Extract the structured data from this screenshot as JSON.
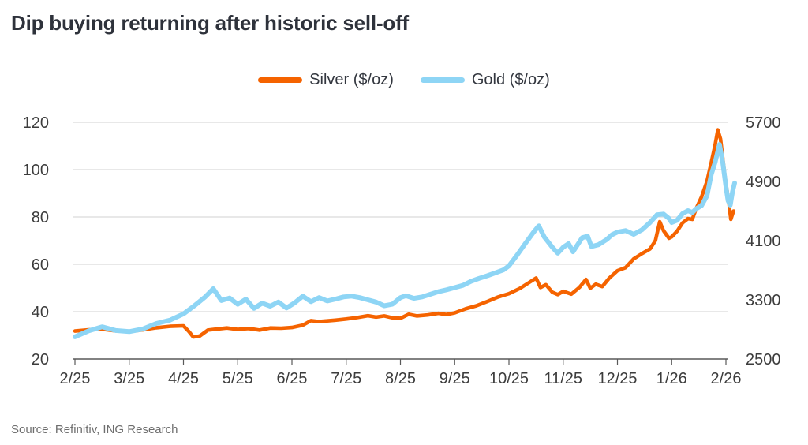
{
  "title": "Dip buying returning after historic sell-off",
  "source": "Source: Refinitiv, ING Research",
  "legend": [
    {
      "label": "Silver ($/oz)",
      "color": "#F56300"
    },
    {
      "label": "Gold ($/oz)",
      "color": "#8ED5F5"
    }
  ],
  "colors": {
    "silver_line": "#F56300",
    "gold_line": "#8ED5F5",
    "gridline": "#d9d9d9",
    "axis_line": "#595959",
    "tick_label": "#3c3c3c",
    "title_text": "#2e323b",
    "source_text": "#6e6e6e"
  },
  "chart_data": {
    "type": "line",
    "title": "Dip buying returning after historic sell-off",
    "grid": "horizontal-only",
    "legend_position": "top-center",
    "x_axis": {
      "categories": [
        "2/25",
        "3/25",
        "4/25",
        "5/25",
        "6/25",
        "7/25",
        "8/25",
        "9/25",
        "10/25",
        "11/25",
        "12/25",
        "1/26",
        "2/26"
      ],
      "unit": "month/year"
    },
    "left_axis": {
      "label": "Silver ($/oz)",
      "ticks": [
        20,
        40,
        60,
        80,
        100,
        120
      ],
      "range": [
        20,
        120
      ]
    },
    "right_axis": {
      "label": "Gold ($/oz)",
      "ticks": [
        2500,
        3300,
        4100,
        4900,
        5700
      ],
      "range": [
        2500,
        5700
      ]
    },
    "series": [
      {
        "name": "Silver ($/oz)",
        "axis": "left",
        "color": "#F56300",
        "x_unit": "months-after-2/25",
        "points": [
          [
            0,
            31.8
          ],
          [
            0.25,
            32.3
          ],
          [
            0.5,
            32.6
          ],
          [
            0.75,
            31.9
          ],
          [
            1,
            31.6
          ],
          [
            1.25,
            32.3
          ],
          [
            1.5,
            33.2
          ],
          [
            1.75,
            33.8
          ],
          [
            2,
            34
          ],
          [
            2.1,
            31.6
          ],
          [
            2.18,
            29.3
          ],
          [
            2.3,
            29.7
          ],
          [
            2.45,
            32.2
          ],
          [
            2.6,
            32.6
          ],
          [
            2.8,
            33.1
          ],
          [
            3,
            32.5
          ],
          [
            3.2,
            32.9
          ],
          [
            3.4,
            32.2
          ],
          [
            3.6,
            33.1
          ],
          [
            3.8,
            33
          ],
          [
            4,
            33.3
          ],
          [
            4.2,
            34.3
          ],
          [
            4.35,
            36.2
          ],
          [
            4.5,
            35.8
          ],
          [
            4.65,
            36.1
          ],
          [
            4.8,
            36.4
          ],
          [
            5,
            36.9
          ],
          [
            5.2,
            37.5
          ],
          [
            5.4,
            38.3
          ],
          [
            5.55,
            37.7
          ],
          [
            5.7,
            38.2
          ],
          [
            5.85,
            37.4
          ],
          [
            6,
            37.2
          ],
          [
            6.15,
            38.9
          ],
          [
            6.3,
            38.2
          ],
          [
            6.5,
            38.6
          ],
          [
            6.7,
            39.3
          ],
          [
            6.85,
            38.8
          ],
          [
            7,
            39.5
          ],
          [
            7.2,
            41.2
          ],
          [
            7.4,
            42.5
          ],
          [
            7.6,
            44.3
          ],
          [
            7.8,
            46.2
          ],
          [
            8,
            47.6
          ],
          [
            8.2,
            49.8
          ],
          [
            8.35,
            52
          ],
          [
            8.5,
            54.2
          ],
          [
            8.58,
            50.2
          ],
          [
            8.68,
            51.4
          ],
          [
            8.8,
            48.2
          ],
          [
            8.9,
            47.2
          ],
          [
            9,
            48.6
          ],
          [
            9.15,
            47.4
          ],
          [
            9.3,
            50.3
          ],
          [
            9.42,
            53.6
          ],
          [
            9.5,
            49.9
          ],
          [
            9.6,
            51.6
          ],
          [
            9.72,
            50.6
          ],
          [
            9.85,
            54.2
          ],
          [
            10,
            57.3
          ],
          [
            10.15,
            58.6
          ],
          [
            10.3,
            62.3
          ],
          [
            10.45,
            64.5
          ],
          [
            10.6,
            66.5
          ],
          [
            10.7,
            70
          ],
          [
            10.78,
            78
          ],
          [
            10.85,
            74.2
          ],
          [
            10.95,
            71
          ],
          [
            11,
            71.6
          ],
          [
            11.1,
            74
          ],
          [
            11.2,
            77.5
          ],
          [
            11.3,
            79.3
          ],
          [
            11.38,
            79
          ],
          [
            11.45,
            83.5
          ],
          [
            11.55,
            88.5
          ],
          [
            11.65,
            95
          ],
          [
            11.73,
            103
          ],
          [
            11.8,
            110.5
          ],
          [
            11.85,
            116.8
          ],
          [
            11.9,
            113
          ],
          [
            11.95,
            103
          ],
          [
            12,
            94
          ],
          [
            12.05,
            87
          ],
          [
            12.09,
            79
          ],
          [
            12.14,
            82.5
          ]
        ]
      },
      {
        "name": "Gold ($/oz)",
        "axis": "right",
        "color": "#8ED5F5",
        "x_unit": "months-after-2/25",
        "points": [
          [
            0,
            2800
          ],
          [
            0.25,
            2880
          ],
          [
            0.5,
            2935
          ],
          [
            0.75,
            2885
          ],
          [
            1,
            2870
          ],
          [
            1.25,
            2905
          ],
          [
            1.5,
            2980
          ],
          [
            1.75,
            3025
          ],
          [
            2,
            3110
          ],
          [
            2.2,
            3220
          ],
          [
            2.4,
            3340
          ],
          [
            2.55,
            3450
          ],
          [
            2.7,
            3290
          ],
          [
            2.85,
            3325
          ],
          [
            3,
            3240
          ],
          [
            3.15,
            3310
          ],
          [
            3.3,
            3185
          ],
          [
            3.45,
            3255
          ],
          [
            3.6,
            3215
          ],
          [
            3.75,
            3270
          ],
          [
            3.9,
            3190
          ],
          [
            4.05,
            3260
          ],
          [
            4.2,
            3350
          ],
          [
            4.35,
            3275
          ],
          [
            4.5,
            3330
          ],
          [
            4.65,
            3285
          ],
          [
            4.8,
            3310
          ],
          [
            4.95,
            3340
          ],
          [
            5.1,
            3350
          ],
          [
            5.25,
            3330
          ],
          [
            5.4,
            3300
          ],
          [
            5.55,
            3270
          ],
          [
            5.7,
            3220
          ],
          [
            5.85,
            3240
          ],
          [
            6,
            3330
          ],
          [
            6.1,
            3355
          ],
          [
            6.25,
            3320
          ],
          [
            6.4,
            3340
          ],
          [
            6.55,
            3375
          ],
          [
            6.7,
            3410
          ],
          [
            6.85,
            3435
          ],
          [
            7,
            3465
          ],
          [
            7.15,
            3495
          ],
          [
            7.3,
            3550
          ],
          [
            7.45,
            3590
          ],
          [
            7.6,
            3625
          ],
          [
            7.75,
            3665
          ],
          [
            7.9,
            3705
          ],
          [
            8,
            3760
          ],
          [
            8.15,
            3905
          ],
          [
            8.3,
            4060
          ],
          [
            8.45,
            4210
          ],
          [
            8.55,
            4300
          ],
          [
            8.65,
            4150
          ],
          [
            8.8,
            4010
          ],
          [
            8.9,
            3930
          ],
          [
            9,
            4010
          ],
          [
            9.1,
            4060
          ],
          [
            9.18,
            3950
          ],
          [
            9.35,
            4140
          ],
          [
            9.45,
            4160
          ],
          [
            9.52,
            4020
          ],
          [
            9.65,
            4045
          ],
          [
            9.8,
            4115
          ],
          [
            9.9,
            4180
          ],
          [
            10,
            4215
          ],
          [
            10.15,
            4235
          ],
          [
            10.3,
            4185
          ],
          [
            10.45,
            4245
          ],
          [
            10.6,
            4345
          ],
          [
            10.73,
            4450
          ],
          [
            10.85,
            4460
          ],
          [
            10.95,
            4400
          ],
          [
            11,
            4345
          ],
          [
            11.1,
            4375
          ],
          [
            11.2,
            4465
          ],
          [
            11.3,
            4505
          ],
          [
            11.38,
            4480
          ],
          [
            11.45,
            4530
          ],
          [
            11.55,
            4575
          ],
          [
            11.65,
            4705
          ],
          [
            11.73,
            4995
          ],
          [
            11.8,
            5160
          ],
          [
            11.88,
            5400
          ],
          [
            11.94,
            5160
          ],
          [
            12,
            4830
          ],
          [
            12.04,
            4640
          ],
          [
            12.08,
            4580
          ],
          [
            12.12,
            4760
          ],
          [
            12.16,
            4880
          ]
        ]
      }
    ]
  }
}
